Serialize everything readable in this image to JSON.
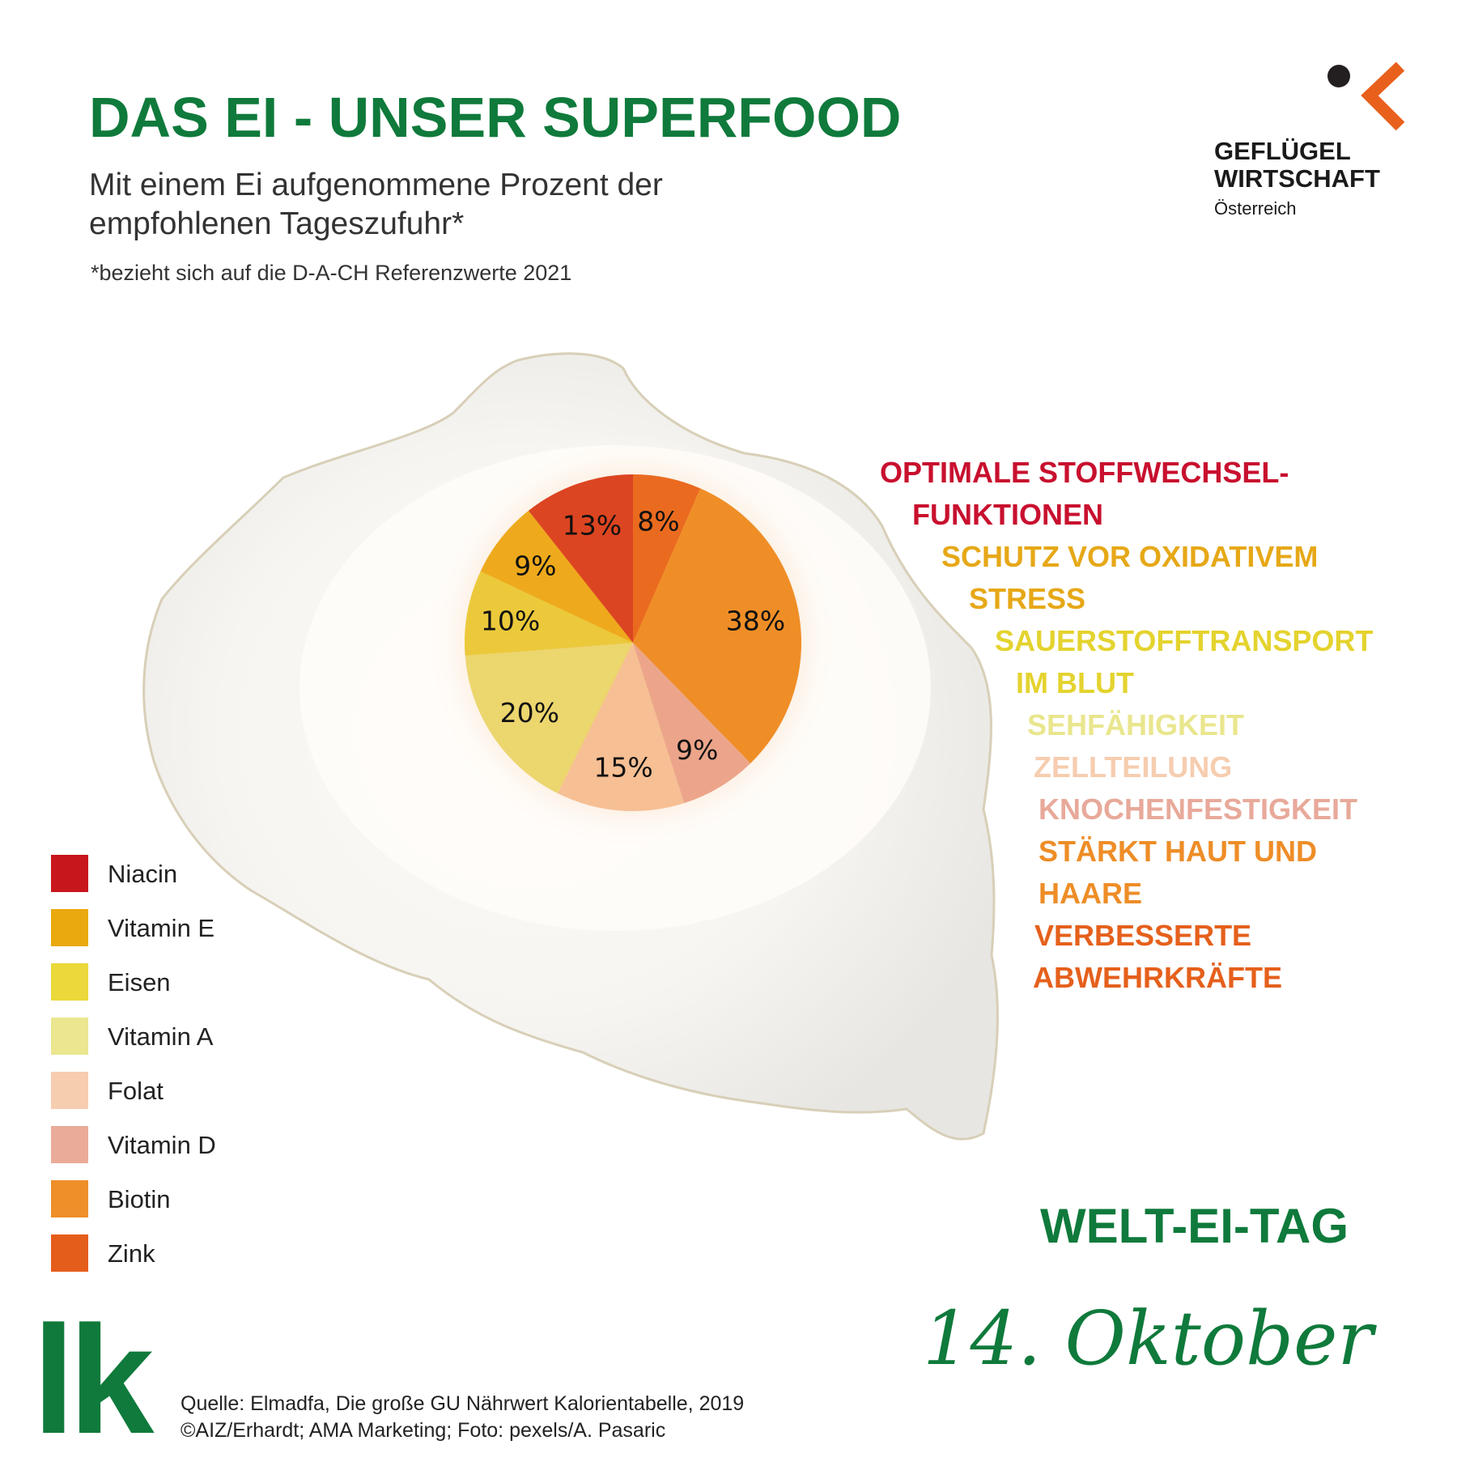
{
  "header": {
    "title": "DAS EI - UNSER SUPERFOOD",
    "subtitle": "Mit einem Ei aufgenommene Prozent der empfohlenen Tageszufuhr*",
    "footnote": "*bezieht sich auf die D-A-CH Referenzwerte 2021"
  },
  "logo": {
    "line1": "GEFLÜGEL",
    "line2": "WIRTSCHAFT",
    "line3": "Österreich",
    "dot_color": "#231f20",
    "chevron_color": "#e8601c"
  },
  "chart_data": {
    "type": "pie",
    "start": "top, clockwise",
    "slices": [
      {
        "label": "Zink",
        "value": 8,
        "text": "8%",
        "color": "#ea6b1f"
      },
      {
        "label": "Biotin",
        "value": 38,
        "text": "38%",
        "color": "#ef8e27"
      },
      {
        "label": "Vitamin D",
        "value": 9,
        "text": "9%",
        "color": "#eca58a"
      },
      {
        "label": "Folat",
        "value": 15,
        "text": "15%",
        "color": "#f6bf94"
      },
      {
        "label": "Vitamin A",
        "value": 20,
        "text": "20%",
        "color": "#ecd66e"
      },
      {
        "label": "Eisen",
        "value": 10,
        "text": "10%",
        "color": "#ecc93a"
      },
      {
        "label": "Vitamin E",
        "value": 9,
        "text": "9%",
        "color": "#eeaa1c"
      },
      {
        "label": "Niacin",
        "value": 13,
        "text": "13%",
        "color": "#dc4521"
      }
    ],
    "legend": [
      {
        "label": "Niacin",
        "color": "#c8161d"
      },
      {
        "label": "Vitamin E",
        "color": "#eaa90f"
      },
      {
        "label": "Eisen",
        "color": "#ebd83a"
      },
      {
        "label": "Vitamin A",
        "color": "#ebe68f"
      },
      {
        "label": "Folat",
        "color": "#f7cdb0"
      },
      {
        "label": "Vitamin D",
        "color": "#eaab99"
      },
      {
        "label": "Biotin",
        "color": "#ee8f2a"
      },
      {
        "label": "Zink",
        "color": "#e55d1b"
      }
    ],
    "legend_position": "bottom-left"
  },
  "benefits": [
    {
      "text": "OPTIMALE STOFFWECHSEL-",
      "color": "#c8102e"
    },
    {
      "text": "FUNKTIONEN",
      "color": "#c8102e"
    },
    {
      "text": "SCHUTZ VOR OXIDATIVEM",
      "color": "#e6a817"
    },
    {
      "text": "STRESS",
      "color": "#e6a817"
    },
    {
      "text": "SAUERSTOFFTRANSPORT",
      "color": "#e4d32e"
    },
    {
      "text": "IM BLUT",
      "color": "#e4d32e"
    },
    {
      "text": "SEHFÄHIGKEIT",
      "color": "#e9e68e"
    },
    {
      "text": "ZELLTEILUNG",
      "color": "#f6cdaf"
    },
    {
      "text": "KNOCHENFESTIGKEIT",
      "color": "#e8a99a"
    },
    {
      "text": "STÄRKT HAUT UND",
      "color": "#ee8d27"
    },
    {
      "text": "HAARE",
      "color": "#ee8d27"
    },
    {
      "text": "VERBESSERTE",
      "color": "#e5601c"
    },
    {
      "text": "ABWEHRKRÄFTE",
      "color": "#e5601c"
    }
  ],
  "event": {
    "title": "WELT-EI-TAG",
    "date": "14. Oktober"
  },
  "brand": {
    "lk_logo": "lk",
    "green": "#0f7a3b"
  },
  "source": {
    "line1": "Quelle: Elmadfa, Die große GU Nährwert Kalorientabelle, 2019",
    "line2": "©AIZ/Erhardt; AMA Marketing; Foto: pexels/A. Pasaric"
  }
}
